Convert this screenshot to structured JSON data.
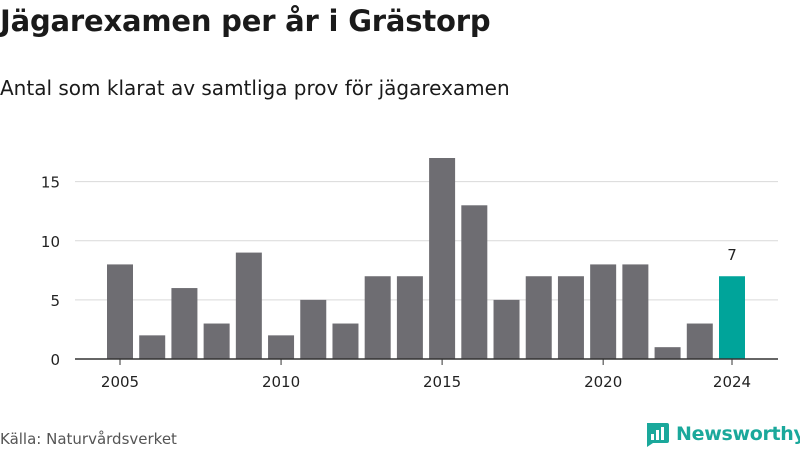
{
  "title": "Jägarexamen per år i Grästorp",
  "subtitle": "Antal som klarat av samtliga prov för jägarexamen",
  "source": "Källa: Naturvårdsverket",
  "brand": {
    "name": "Newsworthy",
    "icon": "newsworthy-logo-icon"
  },
  "colors": {
    "bar": "#6e6d72",
    "highlight": "#00a49a",
    "grid": "#d9d9d9",
    "axis": "#333333",
    "text": "#222222"
  },
  "chart_data": {
    "type": "bar",
    "title": "Jägarexamen per år i Grästorp",
    "subtitle": "Antal som klarat av samtliga prov för jägarexamen",
    "categories": [
      2005,
      2006,
      2007,
      2008,
      2009,
      2010,
      2011,
      2012,
      2013,
      2014,
      2015,
      2016,
      2017,
      2018,
      2019,
      2020,
      2021,
      2022,
      2023,
      2024
    ],
    "values": [
      8,
      2,
      6,
      3,
      9,
      2,
      5,
      3,
      7,
      7,
      17,
      13,
      5,
      7,
      7,
      8,
      8,
      1,
      3,
      7
    ],
    "highlight_index": 19,
    "data_labels": [
      {
        "category": 2024,
        "text": "7"
      }
    ],
    "x_ticks": [
      "2005",
      "2010",
      "2015",
      "2020",
      "2024"
    ],
    "y_ticks": [
      0,
      5,
      10,
      15
    ],
    "ylim": [
      0,
      17
    ],
    "grid": "horizontal",
    "legend": "none",
    "xlabel": "",
    "ylabel": ""
  }
}
